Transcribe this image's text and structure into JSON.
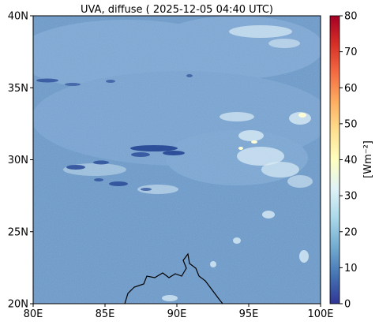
{
  "figure": {
    "title": "UVA, diffuse ( 2025-12-05 04:40 UTC)"
  },
  "map": {
    "lon_range": [
      80,
      100
    ],
    "lat_range": [
      20,
      40
    ],
    "x_ticks": [
      "80E",
      "85E",
      "90E",
      "95E",
      "100E"
    ],
    "y_ticks": [
      "20N",
      "25N",
      "30N",
      "35N",
      "40N"
    ],
    "base_color": "#6a97c6",
    "coastline_color": "#000000"
  },
  "colorbar": {
    "label": "[Wm⁻²]",
    "min": 0,
    "max": 80,
    "ticks": [
      "0",
      "10",
      "20",
      "30",
      "40",
      "50",
      "60",
      "70",
      "80"
    ],
    "colormap": "RdYlBu_r",
    "colors": [
      "#313695",
      "#4575b4",
      "#74add1",
      "#abd9e9",
      "#e0f3f8",
      "#ffffbf",
      "#fee090",
      "#fdae61",
      "#f46d43",
      "#d73027",
      "#a50026"
    ]
  }
}
